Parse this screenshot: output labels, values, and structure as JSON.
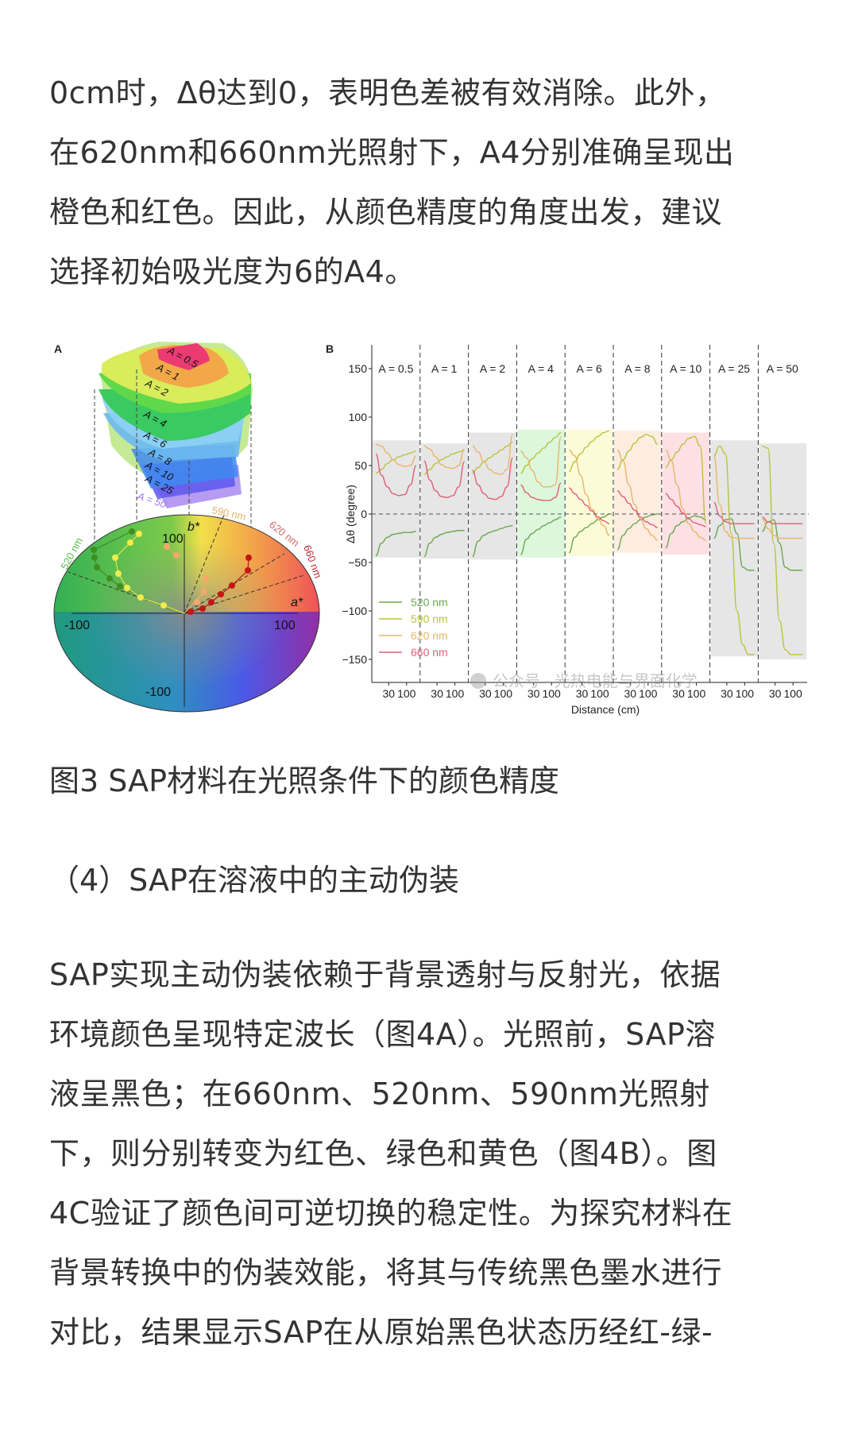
{
  "article": {
    "paragraph1": [
      "0cm时，Δθ达到0，表明色差被有效消除。此外，",
      "在620nm和660nm光照射下，A4分别准确呈现出",
      "橙色和红色。因此，从颜色精度的角度出发，建议",
      "选择初始吸光度为6的A4。"
    ],
    "figure_caption": "图3 SAP材料在光照条件下的颜色精度",
    "section_heading": "（4）SAP在溶液中的主动伪装",
    "paragraph2": [
      "SAP实现主动伪装依赖于背景透射与反射光，依据",
      "环境颜色呈现特定波长（图4A）。光照前，SAP溶",
      "液呈黑色；在660nm、520nm、590nm光照射",
      "下，则分别转变为红色、绿色和黄色（图4B）。图",
      "4C验证了颜色间可逆切换的稳定性。为探究材料在",
      "背景转换中的伪装效能，将其与传统黑色墨水进行",
      "对比，结果显示SAP在从原始黑色状态历经红-绿-"
    ]
  },
  "figure": {
    "panel_a": {
      "label": "A",
      "layers": [
        "A = 0.5",
        "A = 1",
        "A = 2",
        "A = 4",
        "A = 6",
        "A = 8",
        "A = 10",
        "A = 25",
        "A = 50"
      ],
      "axis_a": "a*",
      "axis_b": "b*",
      "ticks": [
        "-100",
        "100",
        "100",
        "-100"
      ],
      "wavelength_labels": [
        "520 nm",
        "590 nm",
        "620 nm",
        "660 nm"
      ]
    },
    "panel_b": {
      "label": "B",
      "watermark": "公众号 · 光热电能与界面化学"
    }
  },
  "chart_data": {
    "type": "line",
    "title": "B",
    "xlabel": "Distance (cm)",
    "ylabel": "Δθ (degree)",
    "ylim": [
      -175,
      175
    ],
    "yticks": [
      -150,
      -100,
      -50,
      0,
      50,
      100,
      150
    ],
    "x_tick_labels_per_panel": [
      "30",
      "100"
    ],
    "facets": [
      "A = 0.5",
      "A = 1",
      "A = 2",
      "A = 4",
      "A = 6",
      "A = 8",
      "A = 10",
      "A = 25",
      "A = 50"
    ],
    "legend": [
      {
        "name": "520 nm",
        "color": "#6aa84f"
      },
      {
        "name": "590 nm",
        "color": "#b8c43c"
      },
      {
        "name": "620 nm",
        "color": "#e9b56a"
      },
      {
        "name": "660 nm",
        "color": "#e0607a"
      }
    ],
    "shaded_bands": [
      {
        "facet": "A = 0.5",
        "ymin": -45,
        "ymax": 76,
        "color": "#e6e6e6"
      },
      {
        "facet": "A = 1",
        "ymin": -46,
        "ymax": 73,
        "color": "#e6e6e6"
      },
      {
        "facet": "A = 2",
        "ymin": -47,
        "ymax": 84,
        "color": "#e6e6e6"
      },
      {
        "facet": "A = 4",
        "ymin": -45,
        "ymax": 87,
        "color": "#dcf7dc"
      },
      {
        "facet": "A = 6",
        "ymin": -43,
        "ymax": 87,
        "color": "#fbfbd8"
      },
      {
        "facet": "A = 8",
        "ymin": -40,
        "ymax": 86,
        "color": "#fdece0"
      },
      {
        "facet": "A = 10",
        "ymin": -42,
        "ymax": 84,
        "color": "#fde0e4"
      },
      {
        "facet": "A = 25",
        "ymin": -147,
        "ymax": 76,
        "color": "#e6e6e6"
      },
      {
        "facet": "A = 50",
        "ymin": -150,
        "ymax": 73,
        "color": "#e6e6e6"
      }
    ],
    "series_note": "each facet: y values at 8 evenly spaced distance samples",
    "series": [
      {
        "name": "520 nm",
        "facets": [
          [
            -43,
            -30,
            -24,
            -21,
            -20,
            -19,
            -19,
            -18
          ],
          [
            -44,
            -30,
            -24,
            -21,
            -19,
            -18,
            -17,
            -17
          ],
          [
            -44,
            -28,
            -22,
            -19,
            -17,
            -15,
            -13,
            -12
          ],
          [
            -42,
            -26,
            -20,
            -16,
            -12,
            -9,
            -6,
            -3
          ],
          [
            -40,
            -24,
            -18,
            -14,
            -10,
            -6,
            -3,
            0
          ],
          [
            -37,
            -22,
            -15,
            -10,
            -6,
            -3,
            -1,
            0
          ],
          [
            -35,
            -20,
            -12,
            -8,
            -4,
            -2,
            -3,
            -6
          ],
          [
            -25,
            -12,
            -6,
            -5,
            -20,
            -55,
            -58,
            -58
          ],
          [
            -18,
            -8,
            -6,
            -30,
            -55,
            -58,
            -58,
            -58
          ]
        ]
      },
      {
        "name": "590 nm",
        "facets": [
          [
            42,
            46,
            52,
            56,
            59,
            61,
            63,
            65
          ],
          [
            41,
            46,
            52,
            56,
            59,
            62,
            64,
            66
          ],
          [
            42,
            48,
            54,
            58,
            62,
            66,
            70,
            74
          ],
          [
            42,
            50,
            57,
            63,
            68,
            74,
            79,
            84
          ],
          [
            44,
            54,
            62,
            69,
            75,
            80,
            84,
            86
          ],
          [
            46,
            56,
            65,
            73,
            79,
            82,
            80,
            72
          ],
          [
            48,
            56,
            64,
            72,
            78,
            80,
            70,
            -10
          ],
          [
            60,
            70,
            62,
            -20,
            -100,
            -135,
            -145,
            -145
          ],
          [
            70,
            68,
            -30,
            -110,
            -140,
            -145,
            -145,
            -145
          ]
        ]
      },
      {
        "name": "620 nm",
        "facets": [
          [
            72,
            70,
            63,
            56,
            51,
            49,
            50,
            60
          ],
          [
            70,
            67,
            59,
            51,
            48,
            47,
            50,
            67
          ],
          [
            70,
            64,
            54,
            46,
            42,
            41,
            46,
            82
          ],
          [
            65,
            58,
            45,
            33,
            28,
            28,
            30,
            80
          ],
          [
            66,
            60,
            40,
            20,
            5,
            -5,
            -12,
            -22
          ],
          [
            66,
            55,
            30,
            10,
            -5,
            -15,
            -22,
            -27
          ],
          [
            66,
            55,
            30,
            5,
            -10,
            -18,
            -24,
            -27
          ],
          [
            60,
            10,
            -18,
            -24,
            -25,
            -25,
            -25,
            -25
          ],
          [
            -5,
            -15,
            -22,
            -25,
            -25,
            -25,
            -25,
            -25
          ]
        ]
      },
      {
        "name": "660 nm",
        "facets": [
          [
            62,
            40,
            28,
            21,
            19,
            20,
            30,
            50
          ],
          [
            55,
            35,
            24,
            18,
            17,
            19,
            28,
            54
          ],
          [
            45,
            30,
            21,
            16,
            15,
            18,
            28,
            58
          ],
          [
            30,
            22,
            17,
            15,
            14,
            14,
            17,
            32
          ],
          [
            27,
            21,
            15,
            9,
            3,
            -3,
            -7,
            -10
          ],
          [
            24,
            18,
            11,
            4,
            -3,
            -8,
            -11,
            -14
          ],
          [
            21,
            15,
            8,
            1,
            -5,
            -9,
            -11,
            -13
          ],
          [
            12,
            -2,
            -8,
            -10,
            -10,
            -10,
            -10,
            -10
          ],
          [
            -3,
            -8,
            -10,
            -10,
            -10,
            -10,
            -10,
            -10
          ]
        ]
      }
    ]
  }
}
